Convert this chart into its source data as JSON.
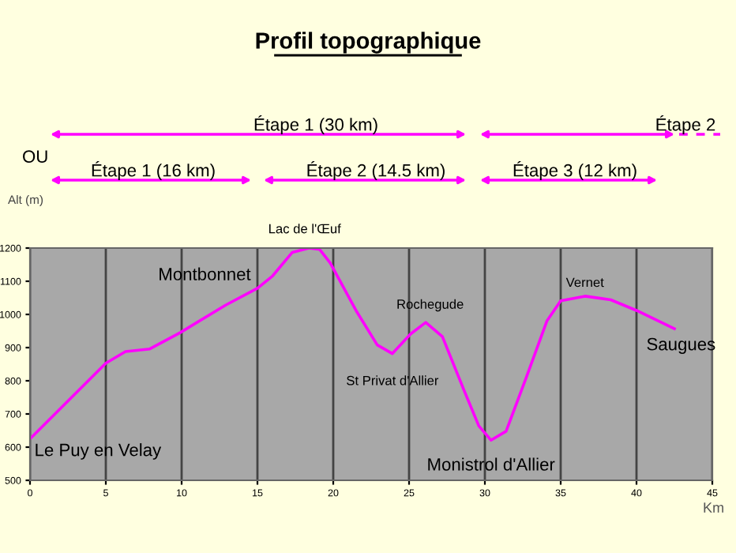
{
  "chart_data": {
    "type": "line",
    "title": "Profil topographique",
    "xlabel": "Km",
    "ylabel": "Alt (m)",
    "x": [
      0,
      5,
      6.3,
      7.9,
      9.9,
      12.9,
      15,
      16,
      17.3,
      18.4,
      19.1,
      19.8,
      21.5,
      22.9,
      23.9,
      25.1,
      26.1,
      27.2,
      28.6,
      29.6,
      30.4,
      31.4,
      32.7,
      34.1,
      35,
      36.6,
      38.3,
      40,
      42.5
    ],
    "series": [
      {
        "color": "#ff00ff",
        "values": [
          625,
          853,
          888,
          896,
          945,
          1028,
          1079,
          1116,
          1187,
          1200,
          1196,
          1155,
          1012,
          908,
          882,
          941,
          976,
          933,
          774,
          664,
          621,
          648,
          806,
          981,
          1041,
          1055,
          1044,
          1012,
          957
        ]
      }
    ],
    "xlim": [
      0,
      45
    ],
    "xticks": [
      0,
      5,
      10,
      15,
      20,
      25,
      30,
      35,
      40,
      45
    ],
    "ylim": [
      500,
      1200
    ],
    "yticks": [
      500,
      600,
      700,
      800,
      900,
      1000,
      1100,
      1200
    ],
    "grid": "x",
    "marker": "none",
    "line_style": "solid",
    "legend": false,
    "annotations": [
      {
        "text": "Le Puy en Velay",
        "x": 0,
        "y": 625
      },
      {
        "text": "Montbonnet",
        "x": 15,
        "y": 1079
      },
      {
        "text": "Lac de l'Œuf",
        "x": 18.4,
        "y": 1210
      },
      {
        "text": "St Privat d'Allier",
        "x": 23.9,
        "y": 882
      },
      {
        "text": "Rochegude",
        "x": 26.1,
        "y": 976
      },
      {
        "text": "Monistrol d'Allier",
        "x": 30.4,
        "y": 621
      },
      {
        "text": "Vernet",
        "x": 36.6,
        "y": 1055
      },
      {
        "text": "Saugues",
        "x": 42.5,
        "y": 957
      },
      "Étape 1 (30 km)",
      "Étape 2",
      "OU",
      "Étape 1 (16 km)",
      "Étape 2 (14.5 km)",
      "Étape 3 (12 km)"
    ]
  }
}
